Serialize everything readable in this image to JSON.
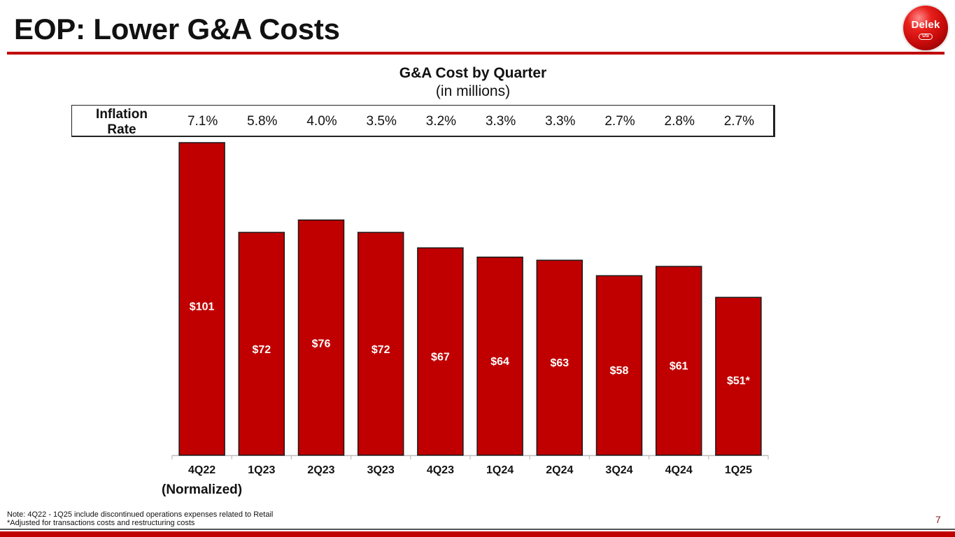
{
  "header": {
    "title": "EOP: Lower G&A Costs",
    "logo_text": "Delek",
    "logo_badge": "US",
    "accent_color": "#c00000"
  },
  "inflation": {
    "label_line1": "Inflation",
    "label_line2": "Rate",
    "values": [
      "7.1%",
      "5.8%",
      "4.0%",
      "3.5%",
      "3.2%",
      "3.3%",
      "3.3%",
      "2.7%",
      "2.8%",
      "2.7%"
    ]
  },
  "chart_data": {
    "type": "bar",
    "title": "G&A Cost by Quarter",
    "subtitle": "(in millions)",
    "xlabel": "",
    "ylabel": "",
    "categories": [
      "4Q22",
      "1Q23",
      "2Q23",
      "3Q23",
      "4Q23",
      "1Q24",
      "2Q24",
      "3Q24",
      "4Q24",
      "1Q25"
    ],
    "values": [
      101,
      72,
      76,
      72,
      67,
      64,
      63,
      58,
      61,
      51
    ],
    "data_labels": [
      "$101",
      "$72",
      "$76",
      "$72",
      "$67",
      "$64",
      "$63",
      "$58",
      "$61",
      "$51*"
    ],
    "ylim": [
      0,
      101
    ],
    "grid": false,
    "legend": "none",
    "bar_color": "#c00000",
    "annotation": "(Normalized)"
  },
  "footer": {
    "note_line1": "Note: 4Q22 - 1Q25 include discontinued operations expenses related to Retail",
    "note_line2": "*Adjusted for transactions costs and restructuring costs",
    "page_number": "7"
  }
}
